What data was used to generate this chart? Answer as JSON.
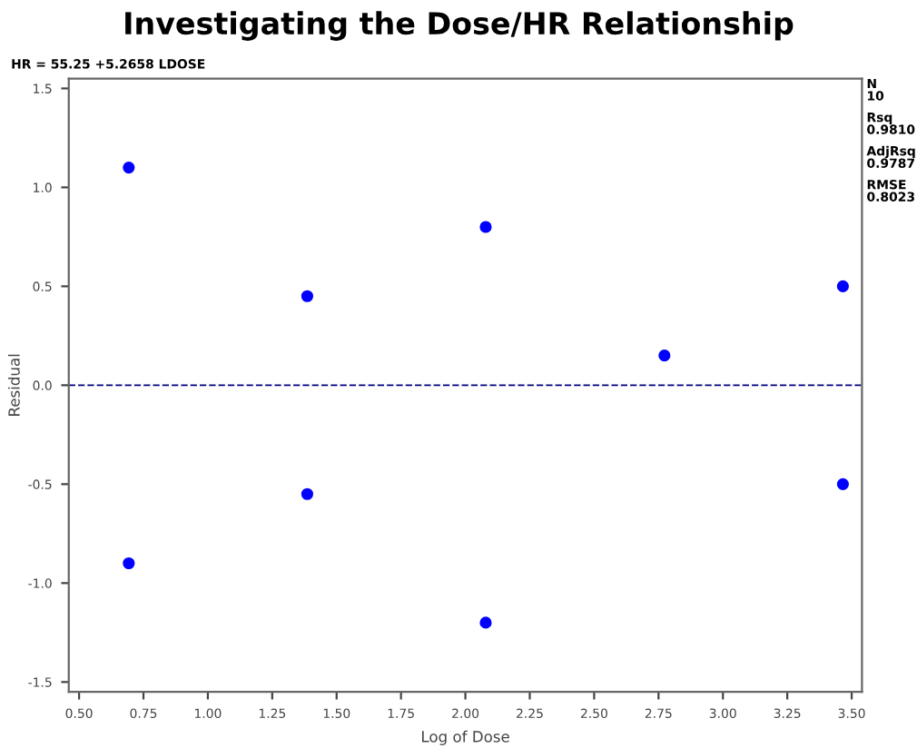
{
  "chart_data": {
    "type": "scatter",
    "title": "Investigating the Dose/HR Relationship",
    "xlabel": "Log of Dose",
    "ylabel": "Residual",
    "x": [
      0.693,
      0.693,
      1.386,
      1.386,
      2.079,
      2.079,
      2.773,
      3.466,
      3.466
    ],
    "series": [
      {
        "color": "#0000ff",
        "values": [
          1.1,
          -0.9,
          0.45,
          -0.55,
          0.8,
          -1.2,
          0.15,
          0.5,
          -0.5
        ]
      }
    ],
    "marker": "circle",
    "xlim": [
      0.46,
      3.54
    ],
    "xticks": [
      {
        "value": 0.5,
        "label": "0.50"
      },
      {
        "value": 0.75,
        "label": "0.75"
      },
      {
        "value": 1.0,
        "label": "1.00"
      },
      {
        "value": 1.25,
        "label": "1.25"
      },
      {
        "value": 1.5,
        "label": "1.50"
      },
      {
        "value": 1.75,
        "label": "1.75"
      },
      {
        "value": 2.0,
        "label": "2.00"
      },
      {
        "value": 2.25,
        "label": "2.25"
      },
      {
        "value": 2.5,
        "label": "2.50"
      },
      {
        "value": 2.75,
        "label": "2.75"
      },
      {
        "value": 3.0,
        "label": "3.00"
      },
      {
        "value": 3.25,
        "label": "3.25"
      },
      {
        "value": 3.5,
        "label": "3.50"
      }
    ],
    "ylim": [
      -1.55,
      1.55
    ],
    "yticks": [
      {
        "value": -1.5,
        "label": "-1.5"
      },
      {
        "value": -1.0,
        "label": "-1.0"
      },
      {
        "value": -0.5,
        "label": "-0.5"
      },
      {
        "value": 0.0,
        "label": "0.0"
      },
      {
        "value": 0.5,
        "label": "0.5"
      },
      {
        "value": 1.0,
        "label": "1.0"
      },
      {
        "value": 1.5,
        "label": "1.5"
      }
    ],
    "ref_lines": [
      {
        "axis": "y",
        "value": 0,
        "color": "#000080",
        "line_style": "dashed"
      }
    ],
    "grid": false,
    "annotations": [
      "HR = 55.25 +5.2658 LDOSE",
      "N\n10",
      "Rsq\n0.9810",
      "AdjRsq\n0.9787",
      "RMSE\n0.8023"
    ]
  }
}
